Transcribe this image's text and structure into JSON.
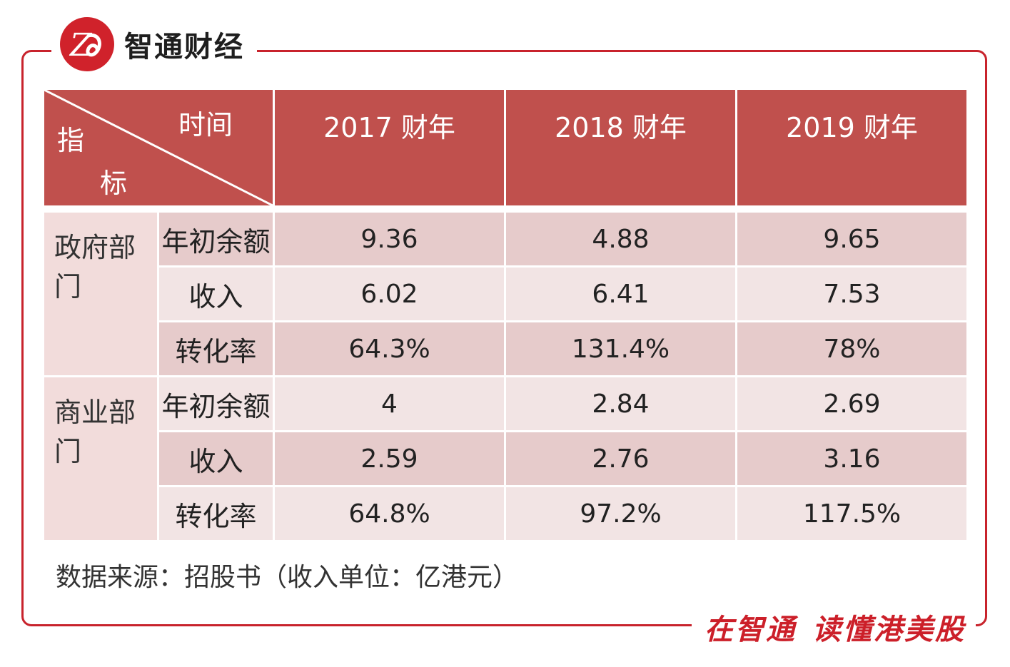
{
  "brand": {
    "logo_name": "智通财经",
    "slogan_part1": "在智通",
    "slogan_part2": "读懂港美股",
    "accent_color": "#c8232c",
    "header_color": "#c0504d"
  },
  "table": {
    "corner": {
      "top_label": "时间",
      "left_label_1": "指",
      "left_label_2": "标"
    },
    "years": [
      "2017 财年",
      "2018 财年",
      "2019 财年"
    ],
    "groups": [
      {
        "category": "政府部门",
        "rows": [
          {
            "label": "年初余额",
            "values": [
              "9.36",
              "4.88",
              "9.65"
            ]
          },
          {
            "label": "收入",
            "values": [
              "6.02",
              "6.41",
              "7.53"
            ]
          },
          {
            "label": "转化率",
            "values": [
              "64.3%",
              "131.4%",
              "78%"
            ]
          }
        ]
      },
      {
        "category": "商业部门",
        "rows": [
          {
            "label": "年初余额",
            "values": [
              "4",
              "2.84",
              "2.69"
            ]
          },
          {
            "label": "收入",
            "values": [
              "2.59",
              "2.76",
              "3.16"
            ]
          },
          {
            "label": "转化率",
            "values": [
              "64.8%",
              "97.2%",
              "117.5%"
            ]
          }
        ]
      }
    ]
  },
  "source_note": "数据来源：招股书（收入单位：亿港元）"
}
